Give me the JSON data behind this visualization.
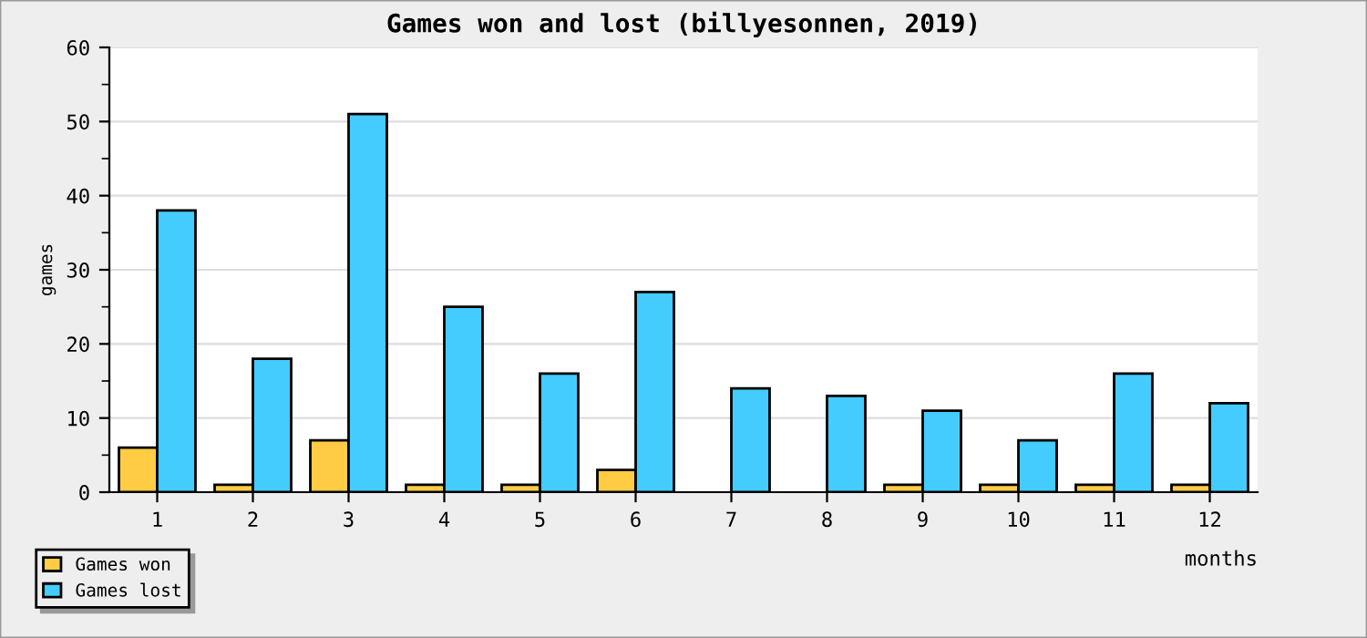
{
  "chart_data": {
    "type": "bar",
    "title": "Games won and lost (billyesonnen, 2019)",
    "xlabel": "months",
    "ylabel": "games",
    "categories": [
      "1",
      "2",
      "3",
      "4",
      "5",
      "6",
      "7",
      "8",
      "9",
      "10",
      "11",
      "12"
    ],
    "series": [
      {
        "name": "Games won",
        "color": "#ffcc44",
        "values": [
          6,
          1,
          7,
          1,
          1,
          3,
          0,
          0,
          1,
          1,
          1,
          1
        ]
      },
      {
        "name": "Games lost",
        "color": "#44ccff",
        "values": [
          38,
          18,
          51,
          25,
          16,
          27,
          14,
          13,
          11,
          7,
          16,
          12
        ]
      }
    ],
    "ylim": [
      0,
      60
    ],
    "yticks": [
      0,
      {
        "value": 5,
        "label": null
      },
      10,
      {
        "value": 15,
        "label": null
      },
      20,
      {
        "value": 25,
        "label": null
      },
      30,
      {
        "value": 35,
        "label": null
      },
      40,
      {
        "value": 45,
        "label": null
      },
      50,
      {
        "value": 55,
        "label": null
      },
      60
    ],
    "grid": "y",
    "legend": "bottom left"
  }
}
